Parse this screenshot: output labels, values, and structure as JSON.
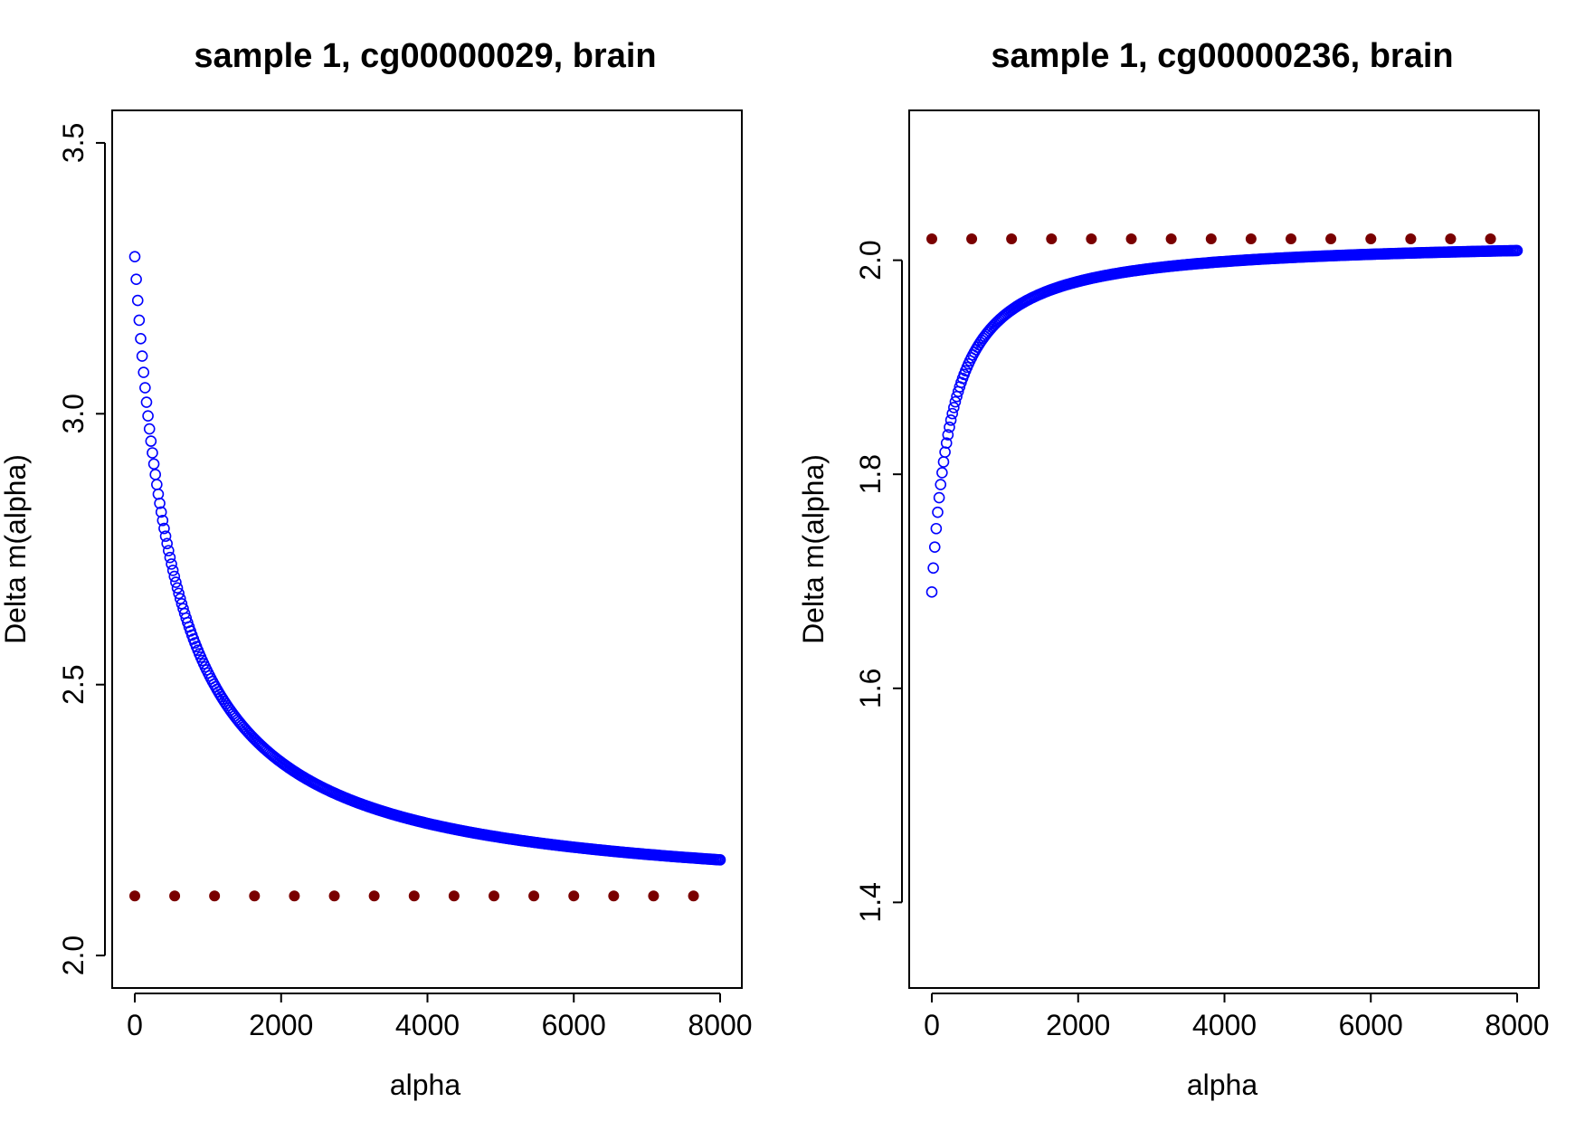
{
  "chart_data": [
    {
      "type": "scatter",
      "title": "sample 1, cg00000029, brain",
      "xlabel": "alpha",
      "ylabel": "Delta m(alpha)",
      "xlim": [
        0,
        8000
      ],
      "ylim": [
        1.94,
        3.56
      ],
      "x_ticks": [
        0,
        2000,
        4000,
        6000,
        8000
      ],
      "x_tick_labels": [
        "0",
        "2000",
        "4000",
        "6000",
        "8000"
      ],
      "y_ticks": [
        2.0,
        2.5,
        3.0,
        3.5
      ],
      "y_tick_labels": [
        "2.0",
        "2.5",
        "3.0",
        "3.5"
      ],
      "colors": {
        "curve": "#0000ff",
        "reference": "#7a0000"
      },
      "series": [
        {
          "style": "open-circles",
          "color": "#0000ff",
          "curve": {
            "start_x": 0,
            "end_x": 8000,
            "count": 400,
            "y_start": 3.29,
            "asymptote": 2.1,
            "half_decay_alpha": 550
          }
        },
        {
          "style": "filled-dots",
          "color": "#7a0000",
          "x": [
            0,
            545,
            1090,
            1636,
            2181,
            2727,
            3272,
            3818,
            4363,
            4909,
            5454,
            6000,
            6545,
            7090,
            7636
          ],
          "y": [
            2.11,
            2.11,
            2.11,
            2.11,
            2.11,
            2.11,
            2.11,
            2.11,
            2.11,
            2.11,
            2.11,
            2.11,
            2.11,
            2.11,
            2.11
          ]
        }
      ]
    },
    {
      "type": "scatter",
      "title": "sample 1, cg00000236, brain",
      "xlabel": "alpha",
      "ylabel": "Delta m(alpha)",
      "xlim": [
        0,
        8000
      ],
      "ylim": [
        1.32,
        2.14
      ],
      "x_ticks": [
        0,
        2000,
        4000,
        6000,
        8000
      ],
      "x_tick_labels": [
        "0",
        "2000",
        "4000",
        "6000",
        "8000"
      ],
      "y_ticks": [
        1.4,
        1.6,
        1.8,
        2.0
      ],
      "y_tick_labels": [
        "1.4",
        "1.6",
        "1.8",
        "2.0"
      ],
      "colors": {
        "curve": "#0000ff",
        "reference": "#7a0000"
      },
      "series": [
        {
          "style": "open-circles",
          "color": "#0000ff",
          "curve": {
            "start_x": 0,
            "end_x": 8000,
            "count": 400,
            "y_start": 1.69,
            "asymptote": 2.02,
            "half_decay_alpha": 275
          }
        },
        {
          "style": "filled-dots",
          "color": "#7a0000",
          "x": [
            0,
            545,
            1090,
            1636,
            2181,
            2727,
            3272,
            3818,
            4363,
            4909,
            5454,
            6000,
            6545,
            7090,
            7636
          ],
          "y": [
            2.02,
            2.02,
            2.02,
            2.02,
            2.02,
            2.02,
            2.02,
            2.02,
            2.02,
            2.02,
            2.02,
            2.02,
            2.02,
            2.02,
            2.02
          ]
        }
      ]
    }
  ]
}
